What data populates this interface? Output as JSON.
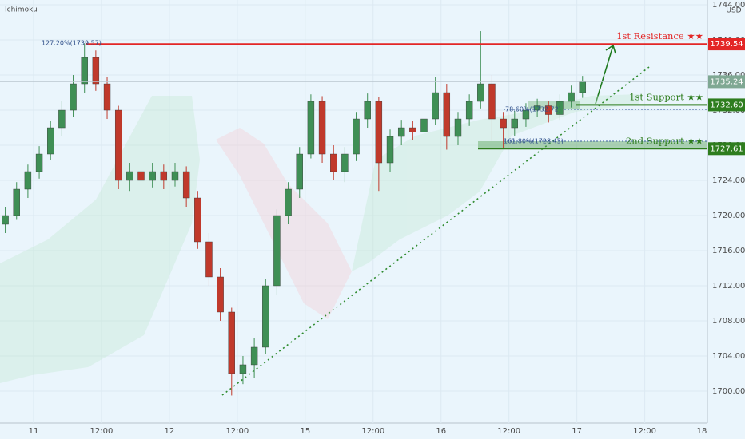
{
  "chart_data": {
    "type": "candlestick",
    "indicator": "Ichimoku",
    "currency": "USD",
    "xlim": [
      -5.93,
      119.07
    ],
    "ylim": [
      1696.36,
      1744.55
    ],
    "xticks": [
      {
        "value": 0,
        "label": "11"
      },
      {
        "value": 12,
        "label": "12:00"
      },
      {
        "value": 24,
        "label": "12"
      },
      {
        "value": 36,
        "label": "12:00"
      },
      {
        "value": 48,
        "label": "15"
      },
      {
        "value": 60,
        "label": "12:00"
      },
      {
        "value": 72,
        "label": "16"
      },
      {
        "value": 84,
        "label": "12:00"
      },
      {
        "value": 96,
        "label": "17"
      },
      {
        "value": 108,
        "label": "12:00"
      },
      {
        "value": 120,
        "label": "18"
      }
    ],
    "yticks": [
      {
        "value": 1700,
        "label": "1700.00"
      },
      {
        "value": 1704,
        "label": "1704.00"
      },
      {
        "value": 1708,
        "label": "1708.00"
      },
      {
        "value": 1712,
        "label": "1712.00"
      },
      {
        "value": 1716,
        "label": "1716.00"
      },
      {
        "value": 1720,
        "label": "1720.00"
      },
      {
        "value": 1724,
        "label": "1724.00"
      },
      {
        "value": 1728,
        "label": "1728.00"
      },
      {
        "value": 1732,
        "label": "1732.00"
      },
      {
        "value": 1736,
        "label": "1736.00"
      },
      {
        "value": 1740,
        "label": "1740.00"
      },
      {
        "value": 1744,
        "label": "1744.00"
      }
    ],
    "up_color": "#3f8f55",
    "down_color": "#c0392b",
    "x": [
      -5,
      -3,
      -1,
      1,
      3,
      5,
      7,
      9,
      11,
      13,
      15,
      17,
      19,
      21,
      23,
      25,
      27,
      29,
      31,
      33,
      35,
      37,
      39,
      41,
      43,
      45,
      47,
      49,
      51,
      53,
      55,
      57,
      59,
      61,
      63,
      65,
      67,
      69,
      71,
      73,
      75,
      77,
      79,
      81,
      83,
      85,
      87,
      89,
      91,
      93,
      95,
      97
    ],
    "ohlc": [
      [
        1719,
        1721,
        1718,
        1720
      ],
      [
        1720,
        1723.8,
        1719.5,
        1723
      ],
      [
        1723,
        1725.8,
        1722,
        1725
      ],
      [
        1725,
        1727.9,
        1724.2,
        1727
      ],
      [
        1727,
        1730.8,
        1726.3,
        1730
      ],
      [
        1730,
        1733,
        1729,
        1732
      ],
      [
        1732,
        1736,
        1731.2,
        1735
      ],
      [
        1735,
        1739.6,
        1734,
        1738
      ],
      [
        1738,
        1738.8,
        1734.2,
        1735
      ],
      [
        1735,
        1735.8,
        1731,
        1732
      ],
      [
        1732,
        1732.5,
        1723,
        1724
      ],
      [
        1724,
        1726,
        1722.8,
        1725
      ],
      [
        1725,
        1725.9,
        1723,
        1724
      ],
      [
        1724,
        1726,
        1723.2,
        1725
      ],
      [
        1725,
        1725.8,
        1723,
        1724
      ],
      [
        1724,
        1726,
        1723.3,
        1725
      ],
      [
        1725,
        1725.6,
        1721,
        1722
      ],
      [
        1722,
        1722.8,
        1716.2,
        1717
      ],
      [
        1717,
        1718,
        1712,
        1713
      ],
      [
        1713,
        1714,
        1708,
        1709
      ],
      [
        1709,
        1709.5,
        1699.5,
        1702
      ],
      [
        1702,
        1704,
        1700.8,
        1703
      ],
      [
        1703,
        1706,
        1701.5,
        1705
      ],
      [
        1705,
        1712.8,
        1704.2,
        1712
      ],
      [
        1712,
        1720.7,
        1711,
        1720
      ],
      [
        1720,
        1723.8,
        1719,
        1723
      ],
      [
        1723,
        1727.8,
        1722,
        1727
      ],
      [
        1727,
        1733.8,
        1726.5,
        1733
      ],
      [
        1733,
        1733.6,
        1726,
        1727
      ],
      [
        1727,
        1728,
        1724,
        1725
      ],
      [
        1725,
        1727.8,
        1723.8,
        1727
      ],
      [
        1727,
        1731.8,
        1726.2,
        1731
      ],
      [
        1731,
        1733.9,
        1730,
        1733
      ],
      [
        1733,
        1733.5,
        1722.8,
        1726
      ],
      [
        1726,
        1729.8,
        1725,
        1729
      ],
      [
        1729,
        1730.9,
        1728,
        1730
      ],
      [
        1730,
        1730.8,
        1728.6,
        1729.5
      ],
      [
        1729.5,
        1731.8,
        1728.9,
        1731
      ],
      [
        1731,
        1735.8,
        1730.3,
        1734
      ],
      [
        1734,
        1735,
        1727.5,
        1729
      ],
      [
        1729,
        1731.8,
        1728,
        1731
      ],
      [
        1731,
        1733.8,
        1730.2,
        1733
      ],
      [
        1733,
        1741,
        1732.2,
        1735
      ],
      [
        1735,
        1736,
        1728.5,
        1731
      ],
      [
        1731,
        1731.8,
        1727.6,
        1730
      ],
      [
        1730,
        1731.9,
        1729,
        1731
      ],
      [
        1731,
        1732.8,
        1730.1,
        1732
      ],
      [
        1732,
        1733.3,
        1731.2,
        1732.5
      ],
      [
        1732.5,
        1733,
        1730.6,
        1731.5
      ],
      [
        1731.5,
        1733.8,
        1730.9,
        1733
      ],
      [
        1733,
        1734.8,
        1732.3,
        1734
      ],
      [
        1734,
        1735.9,
        1733.4,
        1735.24
      ]
    ],
    "levels": [
      {
        "name": "1st Resistance ★★",
        "value": 1739.54,
        "color": "#e32626"
      },
      {
        "name": "1st Support ★★",
        "value": 1732.6,
        "value_label": "1732.60",
        "color": "#2e7d1e"
      },
      {
        "name": "2nd Support ★★",
        "value": 1727.61,
        "color": "#2e7d1e"
      }
    ],
    "annotations": [
      "127.20%(1739.57)",
      "78.60%(1732.72)",
      "161.80%(1728.45)"
    ]
  }
}
